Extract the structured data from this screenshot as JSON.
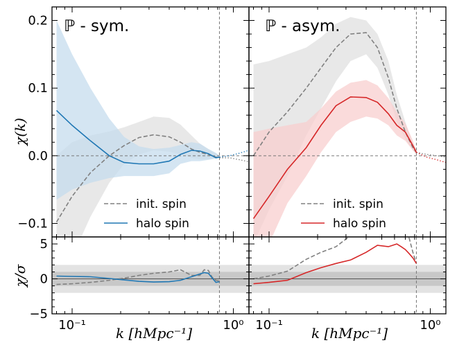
{
  "chart_data": {
    "type": "line",
    "xscale": "log",
    "xlim": [
      0.075,
      1.25
    ],
    "xlabel": "k [hMpc⁻¹]",
    "x_ticklabels": [
      "10⁻¹",
      "10⁰"
    ],
    "k_cut": 0.82,
    "colors": {
      "init": "#808080",
      "sym_halo": "#1f77b4",
      "asym_halo": "#d62728",
      "sym_band": "#c6dcee",
      "asym_band": "#f8cfcf",
      "init_band": "#e6e6e6",
      "sigma_band_1": "#c8c8c8",
      "sigma_band_2": "#e3e3e3"
    },
    "top": {
      "ylabel": "χ(k)",
      "ylim": [
        -0.12,
        0.22
      ],
      "y_ticks": [
        -0.1,
        0.0,
        0.1,
        0.2
      ],
      "y_ticklabels": [
        "−0.1",
        "0.0",
        "0.1",
        "0.2"
      ]
    },
    "bottom": {
      "ylabel": "χ/σ",
      "ylim": [
        -5,
        6
      ],
      "y_ticks": [
        -5,
        0,
        5
      ],
      "y_ticklabels": [
        "−5",
        "0",
        "5"
      ]
    },
    "legend": {
      "placement": "lower-center",
      "entries": [
        "init. spin",
        "halo spin"
      ]
    },
    "panels": [
      {
        "title": "ℙ - sym.",
        "init": {
          "name": "init. spin",
          "x": [
            0.08,
            0.1,
            0.13,
            0.17,
            0.21,
            0.26,
            0.32,
            0.4,
            0.47,
            0.55,
            0.62,
            0.7,
            0.78,
            0.82
          ],
          "y": [
            -0.098,
            -0.06,
            -0.025,
            0.0,
            0.015,
            0.027,
            0.031,
            0.028,
            0.02,
            0.01,
            0.005,
            0.002,
            -0.002,
            -0.003
          ],
          "lo": [
            -0.2,
            -0.15,
            -0.09,
            -0.04,
            -0.012,
            0.002,
            0.008,
            0.006,
            0.002,
            -0.003,
            -0.005,
            -0.005,
            -0.004,
            -0.003
          ],
          "hi": [
            0.0,
            0.02,
            0.03,
            0.036,
            0.042,
            0.05,
            0.058,
            0.056,
            0.046,
            0.03,
            0.018,
            0.01,
            0.004,
            0.0
          ]
        },
        "halo": {
          "name": "halo spin",
          "x": [
            0.08,
            0.1,
            0.13,
            0.17,
            0.21,
            0.26,
            0.32,
            0.4,
            0.47,
            0.55,
            0.62,
            0.7,
            0.78,
            0.82
          ],
          "y": [
            0.067,
            0.045,
            0.022,
            0.0,
            -0.01,
            -0.012,
            -0.012,
            -0.008,
            0.002,
            0.008,
            0.007,
            0.003,
            -0.003,
            -0.002
          ],
          "lo": [
            -0.065,
            -0.05,
            -0.04,
            -0.033,
            -0.03,
            -0.03,
            -0.03,
            -0.026,
            -0.012,
            -0.008,
            -0.008,
            -0.006,
            -0.004,
            -0.003
          ],
          "hi": [
            0.2,
            0.15,
            0.1,
            0.055,
            0.028,
            0.014,
            0.01,
            0.012,
            0.016,
            0.02,
            0.018,
            0.01,
            0.004,
            0.0
          ]
        },
        "init_sigma": {
          "x": [
            0.08,
            0.1,
            0.13,
            0.17,
            0.21,
            0.26,
            0.32,
            0.4,
            0.47,
            0.55,
            0.62,
            0.66,
            0.7,
            0.74,
            0.78,
            0.82
          ],
          "y": [
            -0.8,
            -0.7,
            -0.5,
            -0.2,
            0.1,
            0.5,
            0.8,
            1.0,
            1.3,
            0.5,
            0.5,
            1.3,
            1.2,
            0.2,
            -0.2,
            -0.3
          ]
        },
        "halo_sigma": {
          "x": [
            0.08,
            0.1,
            0.13,
            0.17,
            0.21,
            0.26,
            0.32,
            0.4,
            0.47,
            0.55,
            0.62,
            0.66,
            0.7,
            0.74,
            0.78,
            0.82
          ],
          "y": [
            0.4,
            0.35,
            0.3,
            0.05,
            -0.15,
            -0.35,
            -0.45,
            -0.4,
            -0.2,
            0.3,
            0.7,
            0.9,
            0.8,
            0.1,
            -0.5,
            -0.4
          ]
        }
      },
      {
        "title": "ℙ - asym.",
        "init": {
          "name": "init. spin",
          "x": [
            0.08,
            0.1,
            0.13,
            0.17,
            0.21,
            0.26,
            0.32,
            0.4,
            0.47,
            0.55,
            0.62,
            0.7,
            0.78,
            0.82
          ],
          "y": [
            0.0,
            0.035,
            0.065,
            0.1,
            0.13,
            0.16,
            0.18,
            0.182,
            0.16,
            0.115,
            0.07,
            0.035,
            0.012,
            0.005
          ],
          "lo": [
            -0.13,
            -0.08,
            -0.03,
            0.03,
            0.07,
            0.11,
            0.14,
            0.15,
            0.13,
            0.09,
            0.05,
            0.025,
            0.008,
            0.002
          ],
          "hi": [
            0.135,
            0.14,
            0.15,
            0.16,
            0.175,
            0.195,
            0.205,
            0.2,
            0.18,
            0.14,
            0.09,
            0.05,
            0.018,
            0.008
          ]
        },
        "halo": {
          "name": "halo spin",
          "x": [
            0.08,
            0.1,
            0.13,
            0.17,
            0.21,
            0.26,
            0.32,
            0.4,
            0.47,
            0.55,
            0.62,
            0.7,
            0.78,
            0.82
          ],
          "y": [
            -0.093,
            -0.06,
            -0.02,
            0.012,
            0.045,
            0.074,
            0.087,
            0.086,
            0.079,
            0.062,
            0.045,
            0.035,
            0.015,
            0.005
          ],
          "lo": [
            -0.18,
            -0.13,
            -0.07,
            -0.03,
            0.005,
            0.035,
            0.05,
            0.058,
            0.055,
            0.045,
            0.03,
            0.022,
            0.008,
            0.002
          ],
          "hi": [
            0.035,
            0.04,
            0.045,
            0.05,
            0.07,
            0.095,
            0.108,
            0.112,
            0.104,
            0.085,
            0.065,
            0.048,
            0.022,
            0.008
          ]
        },
        "init_sigma": {
          "x": [
            0.08,
            0.1,
            0.13,
            0.17,
            0.21,
            0.26,
            0.32,
            0.4,
            0.47,
            0.55,
            0.62,
            0.66,
            0.7,
            0.74,
            0.78,
            0.82
          ],
          "y": [
            0.0,
            0.4,
            1.1,
            2.8,
            3.8,
            4.6,
            6.2,
            6.6,
            6.8,
            6.8,
            6.7,
            6.6,
            6.5,
            5.8,
            3.8,
            2.2
          ]
        },
        "halo_sigma": {
          "x": [
            0.08,
            0.1,
            0.13,
            0.17,
            0.21,
            0.26,
            0.32,
            0.4,
            0.47,
            0.55,
            0.62,
            0.66,
            0.7,
            0.74,
            0.78,
            0.82
          ],
          "y": [
            -0.7,
            -0.5,
            -0.2,
            0.9,
            1.6,
            2.2,
            2.7,
            3.8,
            4.8,
            4.6,
            5.0,
            4.6,
            4.2,
            3.6,
            3.0,
            2.2
          ]
        }
      }
    ]
  }
}
